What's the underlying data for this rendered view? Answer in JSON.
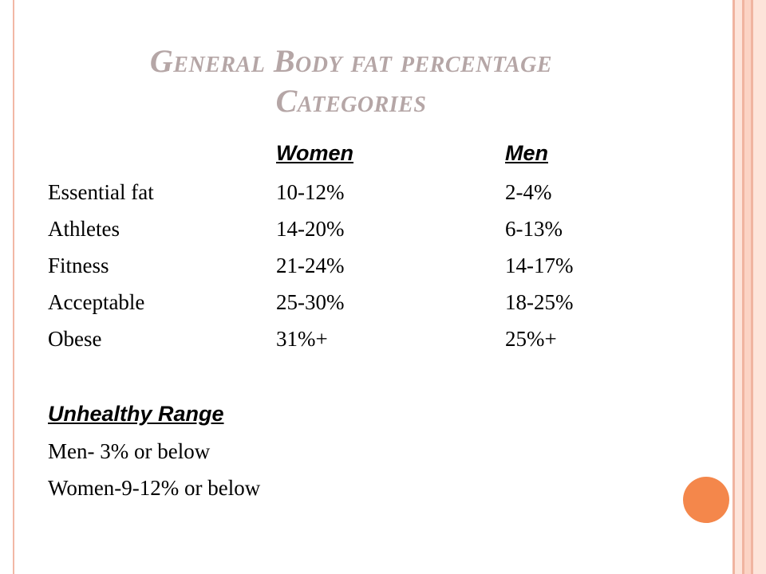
{
  "title": {
    "line1": "General Body fat percentage",
    "line2": "Categories"
  },
  "table": {
    "headers": [
      "Women",
      "Men"
    ],
    "rows": [
      {
        "category": "Essential fat",
        "women": "10-12%",
        "men": "2-4%"
      },
      {
        "category": "Athletes",
        "women": "14-20%",
        "men": "6-13%"
      },
      {
        "category": "Fitness",
        "women": "21-24%",
        "men": "14-17%"
      },
      {
        "category": "Acceptable",
        "women": "25-30%",
        "men": "18-25%"
      },
      {
        "category": "Obese",
        "women": "31%+",
        "men": "25%+"
      }
    ]
  },
  "unhealthy": {
    "heading": "Unhealthy Range",
    "lines": [
      "Men- 3% or below",
      "Women-9-12% or below"
    ]
  },
  "colors": {
    "title": "#b5a6a6",
    "accent_circle": "#f4874b",
    "border": "#f0b4a0"
  }
}
